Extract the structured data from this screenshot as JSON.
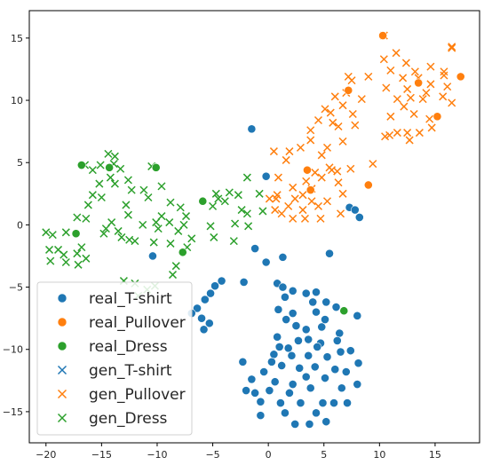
{
  "chart_data": {
    "type": "scatter",
    "title": "",
    "xlabel": "",
    "ylabel": "",
    "xlim": [
      -21.5,
      19
    ],
    "ylim": [
      -17.5,
      17.2
    ],
    "xticks": [
      -20,
      -15,
      -10,
      -5,
      0,
      5,
      10,
      15
    ],
    "yticks": [
      15,
      10,
      5,
      0,
      -5,
      -10,
      -15
    ],
    "grid": false,
    "legend_position": "bottom-left",
    "series": [
      {
        "name": "real_T-shirt",
        "marker": "circle",
        "color": "#1f77b4",
        "points": [
          [
            -1.5,
            7.7
          ],
          [
            -0.2,
            3.9
          ],
          [
            7.3,
            1.4
          ],
          [
            7.8,
            1.2
          ],
          [
            8.2,
            0.6
          ],
          [
            -1.2,
            -1.9
          ],
          [
            1.3,
            -2.6
          ],
          [
            -0.2,
            -3
          ],
          [
            5.5,
            -2.3
          ],
          [
            -10.4,
            -2.5
          ],
          [
            -4.2,
            -4.5
          ],
          [
            -4.8,
            -4.9
          ],
          [
            -2.2,
            -4.6
          ],
          [
            -5.2,
            -5.5
          ],
          [
            -5.7,
            -6
          ],
          [
            -6.4,
            -6.7
          ],
          [
            -6.9,
            -7.1
          ],
          [
            -6.0,
            -7.5
          ],
          [
            -5.3,
            -7.9
          ],
          [
            -5.8,
            -8.4
          ],
          [
            0.8,
            -4.7
          ],
          [
            1.3,
            -5.0
          ],
          [
            2.2,
            -5.3
          ],
          [
            1.5,
            -5.8
          ],
          [
            3.4,
            -5.5
          ],
          [
            4.3,
            -5.4
          ],
          [
            4.0,
            -6.2
          ],
          [
            5.2,
            -6.2
          ],
          [
            6.1,
            -6.6
          ],
          [
            0.9,
            -6.8
          ],
          [
            2.2,
            -7.1
          ],
          [
            4.3,
            -7.0
          ],
          [
            8.0,
            -7.3
          ],
          [
            5.1,
            -7.6
          ],
          [
            1.6,
            -7.6
          ],
          [
            2.5,
            -8.1
          ],
          [
            3.4,
            -8.4
          ],
          [
            4.8,
            -8.2
          ],
          [
            6.4,
            -8.7
          ],
          [
            0.8,
            -9.0
          ],
          [
            2.7,
            -9.3
          ],
          [
            3.6,
            -9.2
          ],
          [
            4.7,
            -9.5
          ],
          [
            6.2,
            -9.3
          ],
          [
            1.0,
            -9.8
          ],
          [
            1.8,
            -9.9
          ],
          [
            4.4,
            -9.8
          ],
          [
            6.5,
            -10.2
          ],
          [
            7.4,
            -10.1
          ],
          [
            0.5,
            -10.4
          ],
          [
            2.1,
            -10.5
          ],
          [
            3.6,
            -10.5
          ],
          [
            5.3,
            -10.6
          ],
          [
            8.1,
            -11.1
          ],
          [
            -2.3,
            -11.0
          ],
          [
            0.3,
            -11.0
          ],
          [
            1.2,
            -11.3
          ],
          [
            2.8,
            -11.5
          ],
          [
            4.2,
            -11.4
          ],
          [
            6.0,
            -11.6
          ],
          [
            7.0,
            -11.8
          ],
          [
            -0.4,
            -11.8
          ],
          [
            3.4,
            -12.2
          ],
          [
            5.1,
            -12.3
          ],
          [
            -1.5,
            -12.4
          ],
          [
            0.6,
            -12.6
          ],
          [
            2.2,
            -12.8
          ],
          [
            3.8,
            -13.1
          ],
          [
            6.6,
            -13.1
          ],
          [
            8.0,
            -12.8
          ],
          [
            -2.0,
            -13.3
          ],
          [
            -1.2,
            -13.5
          ],
          [
            0.1,
            -13.3
          ],
          [
            1.9,
            -13.5
          ],
          [
            -0.7,
            -14.2
          ],
          [
            1.1,
            -14.3
          ],
          [
            2.9,
            -14.3
          ],
          [
            4.9,
            -14.3
          ],
          [
            5.9,
            -14.3
          ],
          [
            7.1,
            -14.3
          ],
          [
            -0.7,
            -15.3
          ],
          [
            1.5,
            -15.1
          ],
          [
            4.3,
            -15.1
          ],
          [
            2.4,
            -16.0
          ],
          [
            3.7,
            -16.0
          ],
          [
            5.2,
            -15.8
          ]
        ]
      },
      {
        "name": "real_Pullover",
        "marker": "circle",
        "color": "#ff7f0e",
        "points": [
          [
            10.3,
            15.2
          ],
          [
            17.3,
            11.9
          ],
          [
            13.5,
            11.4
          ],
          [
            7.2,
            10.8
          ],
          [
            15.2,
            8.7
          ],
          [
            3.5,
            4.4
          ],
          [
            3.8,
            2.8
          ],
          [
            9.0,
            3.2
          ]
        ]
      },
      {
        "name": "real_Dress",
        "marker": "circle",
        "color": "#2ca02c",
        "points": [
          [
            -16.8,
            4.8
          ],
          [
            -14.3,
            4.6
          ],
          [
            -10.1,
            4.6
          ],
          [
            -5.9,
            1.9
          ],
          [
            -17.3,
            -0.7
          ],
          [
            -7.7,
            -2.2
          ],
          [
            6.8,
            -6.9
          ]
        ]
      },
      {
        "name": "gen_T-shirt",
        "marker": "x",
        "color": "#1f77b4",
        "points": []
      },
      {
        "name": "gen_Pullover",
        "marker": "x",
        "color": "#ff7f0e",
        "points": [
          [
            10.4,
            15.2
          ],
          [
            11.5,
            13.8
          ],
          [
            16.5,
            14.3
          ],
          [
            16.5,
            14.2
          ],
          [
            10.4,
            13.3
          ],
          [
            12.4,
            13.0
          ],
          [
            14.6,
            12.7
          ],
          [
            15.8,
            12.3
          ],
          [
            11.0,
            12.4
          ],
          [
            13.2,
            12.3
          ],
          [
            7.5,
            11.6
          ],
          [
            9.0,
            11.9
          ],
          [
            12.1,
            11.8
          ],
          [
            7.2,
            11.9
          ],
          [
            15.8,
            12.0
          ],
          [
            13.5,
            11.8
          ],
          [
            14.6,
            11.3
          ],
          [
            16.1,
            11.1
          ],
          [
            10.6,
            11.0
          ],
          [
            12.5,
            10.9
          ],
          [
            14.2,
            10.6
          ],
          [
            7.0,
            10.6
          ],
          [
            15.7,
            10.3
          ],
          [
            12.8,
            10.2
          ],
          [
            13.9,
            10.1
          ],
          [
            11.6,
            10.1
          ],
          [
            6.0,
            10.3
          ],
          [
            8.4,
            10.1
          ],
          [
            12.2,
            9.5
          ],
          [
            6.7,
            9.6
          ],
          [
            16.5,
            9.8
          ],
          [
            5.6,
            9.0
          ],
          [
            5.1,
            9.3
          ],
          [
            7.6,
            8.9
          ],
          [
            11.0,
            8.7
          ],
          [
            13.1,
            8.9
          ],
          [
            14.5,
            8.5
          ],
          [
            5.8,
            8.2
          ],
          [
            4.5,
            8.4
          ],
          [
            7.8,
            8.0
          ],
          [
            6.3,
            7.9
          ],
          [
            11.6,
            7.4
          ],
          [
            3.8,
            7.6
          ],
          [
            10.9,
            7.2
          ],
          [
            12.5,
            7.4
          ],
          [
            13.6,
            7.4
          ],
          [
            14.7,
            7.8
          ],
          [
            3.8,
            6.8
          ],
          [
            6.7,
            6.7
          ],
          [
            10.5,
            7.1
          ],
          [
            5.3,
            6.2
          ],
          [
            12.7,
            6.8
          ],
          [
            2.9,
            6.2
          ],
          [
            1.9,
            5.9
          ],
          [
            0.5,
            5.9
          ],
          [
            4.8,
            5.6
          ],
          [
            1.6,
            5.2
          ],
          [
            9.4,
            4.9
          ],
          [
            5.5,
            4.6
          ],
          [
            6.2,
            4.3
          ],
          [
            5.7,
            4.4
          ],
          [
            7.4,
            4.5
          ],
          [
            4.2,
            4.2
          ],
          [
            4.8,
            3.8
          ],
          [
            0.9,
            3.8
          ],
          [
            3.4,
            3.5
          ],
          [
            6.3,
            3.4
          ],
          [
            2.2,
            3.0
          ],
          [
            3.9,
            2.9
          ],
          [
            6.7,
            2.5
          ],
          [
            0.8,
            2.4
          ],
          [
            3.1,
            2.4
          ],
          [
            0.1,
            2.1
          ],
          [
            0.7,
            2.1
          ],
          [
            2.4,
            2.1
          ],
          [
            3.9,
            1.9
          ],
          [
            5.3,
            1.9
          ],
          [
            1.8,
            1.5
          ],
          [
            4.5,
            1.5
          ],
          [
            0.6,
            1.2
          ],
          [
            3.1,
            1.2
          ],
          [
            6.5,
            0.9
          ],
          [
            1.2,
            0.9
          ],
          [
            2.2,
            0.5
          ],
          [
            3.3,
            0.5
          ],
          [
            4.7,
            0.5
          ]
        ]
      },
      {
        "name": "gen_Dress",
        "marker": "x",
        "color": "#2ca02c",
        "points": [
          [
            -14.4,
            5.7
          ],
          [
            -13.8,
            5.5
          ],
          [
            -16.5,
            4.8
          ],
          [
            -15.1,
            4.8
          ],
          [
            -13.9,
            4.9
          ],
          [
            -10.5,
            4.7
          ],
          [
            -13.3,
            4.5
          ],
          [
            -15.8,
            4.4
          ],
          [
            -14.2,
            3.8
          ],
          [
            -12.6,
            3.6
          ],
          [
            -1.9,
            3.8
          ],
          [
            -15.2,
            3.3
          ],
          [
            -13.8,
            3.3
          ],
          [
            -9.6,
            3.1
          ],
          [
            -12.3,
            2.8
          ],
          [
            -11.2,
            2.8
          ],
          [
            -15.8,
            2.4
          ],
          [
            -10.8,
            2.2
          ],
          [
            -15.0,
            2.2
          ],
          [
            -4.7,
            2.5
          ],
          [
            -3.5,
            2.6
          ],
          [
            -2.7,
            2.4
          ],
          [
            -4.5,
            2.1
          ],
          [
            -0.8,
            2.5
          ],
          [
            -3.9,
            1.9
          ],
          [
            -8.8,
            1.8
          ],
          [
            -12.8,
            1.6
          ],
          [
            -16.2,
            1.6
          ],
          [
            -7.9,
            1.4
          ],
          [
            -5.0,
            1.5
          ],
          [
            -2.4,
            1.2
          ],
          [
            -1.9,
            0.9
          ],
          [
            -0.5,
            1.1
          ],
          [
            -12.6,
            0.8
          ],
          [
            -7.4,
            0.7
          ],
          [
            -17.2,
            0.6
          ],
          [
            -16.4,
            0.5
          ],
          [
            -9.6,
            0.7
          ],
          [
            -8.9,
            0.2
          ],
          [
            -14.1,
            0.2
          ],
          [
            -10.1,
            0.2
          ],
          [
            -7.6,
            0.0
          ],
          [
            -11.3,
            0.0
          ],
          [
            -9.9,
            -0.3
          ],
          [
            -14.6,
            -0.3
          ],
          [
            -5.2,
            -0.1
          ],
          [
            -3.0,
            0.1
          ],
          [
            -1.8,
            -0.1
          ],
          [
            -14.8,
            -0.7
          ],
          [
            -20.0,
            -0.6
          ],
          [
            -19.4,
            -0.8
          ],
          [
            -18.2,
            -0.6
          ],
          [
            -13.5,
            -0.5
          ],
          [
            -8.1,
            -0.5
          ],
          [
            -13.2,
            -1.0
          ],
          [
            -12.5,
            -1.2
          ],
          [
            -8.8,
            -1.5
          ],
          [
            -3.1,
            -1.3
          ],
          [
            -6.9,
            -1.1
          ],
          [
            -4.9,
            -1.0
          ],
          [
            -12.0,
            -1.3
          ],
          [
            -10.3,
            -1.4
          ],
          [
            -7.3,
            -1.8
          ],
          [
            -19.7,
            -2.0
          ],
          [
            -18.9,
            -2.0
          ],
          [
            -16.8,
            -1.8
          ],
          [
            -17.2,
            -2.3
          ],
          [
            -18.4,
            -2.4
          ],
          [
            -16.4,
            -2.7
          ],
          [
            -18.2,
            -3.0
          ],
          [
            -19.6,
            -2.9
          ],
          [
            -17.1,
            -3.2
          ],
          [
            -8.3,
            -3.3
          ],
          [
            -13.0,
            -4.5
          ],
          [
            -12.0,
            -4.7
          ],
          [
            -10.2,
            -4.9
          ],
          [
            -8.6,
            -4.0
          ],
          [
            -10.9,
            -5.2
          ],
          [
            -11.7,
            -5.7
          ]
        ]
      }
    ]
  }
}
